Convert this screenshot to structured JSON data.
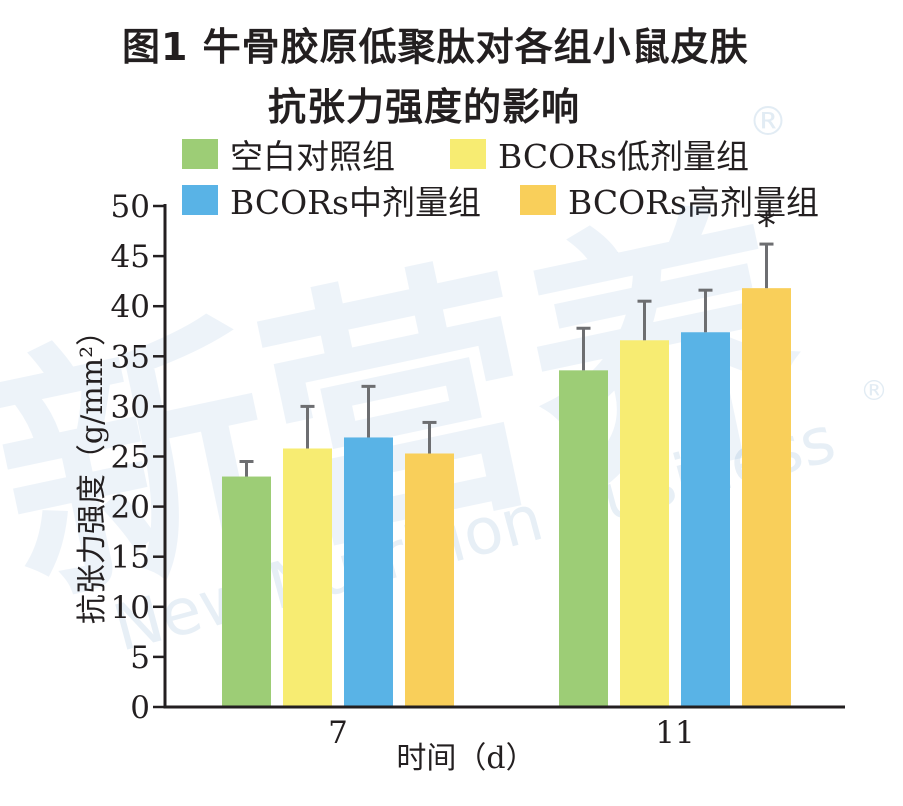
{
  "title_lines": [
    "图1  牛骨胶原低聚肽对各组小鼠皮肤",
    "抗张力强度的影响"
  ],
  "chart_data": {
    "type": "bar",
    "categories": [
      "7",
      "11"
    ],
    "series": [
      {
        "name": "空白对照组",
        "color": "#9dcd76",
        "values": [
          23.0,
          33.6
        ],
        "errors": [
          1.5,
          4.2
        ]
      },
      {
        "name": "BCORs低剂量组",
        "color": "#f7ec72",
        "values": [
          25.8,
          36.6
        ],
        "errors": [
          4.2,
          3.9
        ]
      },
      {
        "name": "BCORs中剂量组",
        "color": "#59b3e6",
        "values": [
          26.9,
          37.4
        ],
        "errors": [
          5.1,
          4.2
        ]
      },
      {
        "name": "BCORs高剂量组",
        "color": "#f9cf5a",
        "values": [
          25.3,
          41.8
        ],
        "errors": [
          3.1,
          4.4
        ]
      }
    ],
    "annotations": [
      {
        "category": "11",
        "series": "BCORs高剂量组",
        "text": "*"
      }
    ],
    "xlabel": "时间（d）",
    "ylabel": "抗张力强度（g/mm²）",
    "ylim": [
      0,
      50
    ],
    "yticks": [
      0,
      5,
      10,
      15,
      20,
      25,
      30,
      35,
      40,
      45,
      50
    ],
    "grid": false,
    "legend_position": "top"
  },
  "watermark": {
    "main": "新营养",
    "sub": "New Nutrition Business",
    "mark": "®"
  }
}
